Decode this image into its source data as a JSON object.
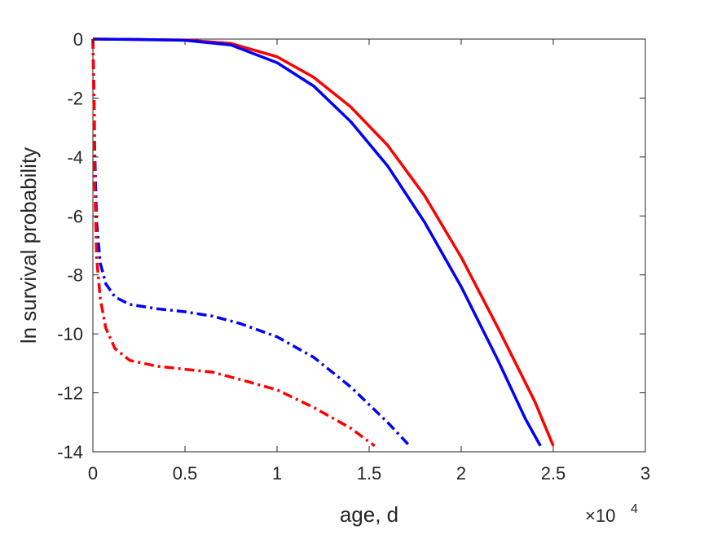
{
  "chart_data": {
    "type": "line",
    "title": "",
    "xlabel": "age, d",
    "ylabel": "ln survival probability",
    "x_multiplier_base": "×10",
    "x_multiplier_exponent": "4",
    "xlim": [
      0,
      30000
    ],
    "ylim": [
      -14,
      0
    ],
    "grid": false,
    "legend": "none",
    "xticks": [
      0,
      5000,
      10000,
      15000,
      20000,
      25000,
      30000
    ],
    "xtick_labels": [
      "0",
      "0.5",
      "1",
      "1.5",
      "2",
      "2.5",
      "3"
    ],
    "yticks": [
      0,
      -2,
      -4,
      -6,
      -8,
      -10,
      -12,
      -14
    ],
    "ytick_labels": [
      "0",
      "-2",
      "-4",
      "-6",
      "-8",
      "-10",
      "-12",
      "-14"
    ],
    "series": [
      {
        "color": "#ff0000",
        "style": "solid",
        "points": [
          [
            0,
            0
          ],
          [
            2000,
            -0.01
          ],
          [
            5000,
            -0.03
          ],
          [
            7500,
            -0.15
          ],
          [
            10000,
            -0.6
          ],
          [
            12000,
            -1.3
          ],
          [
            14000,
            -2.3
          ],
          [
            16000,
            -3.6
          ],
          [
            18000,
            -5.3
          ],
          [
            20000,
            -7.4
          ],
          [
            22000,
            -9.8
          ],
          [
            24000,
            -12.3
          ],
          [
            25000,
            -13.8
          ]
        ]
      },
      {
        "color": "#0000ff",
        "style": "solid",
        "points": [
          [
            0,
            0
          ],
          [
            2000,
            -0.01
          ],
          [
            5000,
            -0.04
          ],
          [
            7500,
            -0.2
          ],
          [
            10000,
            -0.8
          ],
          [
            12000,
            -1.6
          ],
          [
            14000,
            -2.8
          ],
          [
            16000,
            -4.3
          ],
          [
            18000,
            -6.2
          ],
          [
            20000,
            -8.4
          ],
          [
            22000,
            -10.9
          ],
          [
            23500,
            -12.9
          ],
          [
            24300,
            -13.8
          ]
        ]
      },
      {
        "color": "#0000ff",
        "style": "dashdot",
        "points": [
          [
            0,
            0
          ],
          [
            50,
            -1.5
          ],
          [
            100,
            -3.8
          ],
          [
            200,
            -6.2
          ],
          [
            400,
            -7.6
          ],
          [
            700,
            -8.3
          ],
          [
            1200,
            -8.75
          ],
          [
            2000,
            -9.0
          ],
          [
            3500,
            -9.15
          ],
          [
            5000,
            -9.25
          ],
          [
            6500,
            -9.4
          ],
          [
            8000,
            -9.65
          ],
          [
            10000,
            -10.1
          ],
          [
            12000,
            -10.8
          ],
          [
            14000,
            -11.8
          ],
          [
            16000,
            -13.0
          ],
          [
            17200,
            -13.8
          ]
        ]
      },
      {
        "color": "#ff0000",
        "style": "dashdot",
        "points": [
          [
            0,
            0
          ],
          [
            50,
            -2.0
          ],
          [
            100,
            -4.8
          ],
          [
            200,
            -7.4
          ],
          [
            400,
            -8.8
          ],
          [
            700,
            -9.8
          ],
          [
            1200,
            -10.5
          ],
          [
            2000,
            -10.9
          ],
          [
            3500,
            -11.1
          ],
          [
            5000,
            -11.2
          ],
          [
            6500,
            -11.3
          ],
          [
            8000,
            -11.55
          ],
          [
            10000,
            -11.9
          ],
          [
            12000,
            -12.5
          ],
          [
            14000,
            -13.2
          ],
          [
            15300,
            -13.8
          ]
        ]
      }
    ]
  }
}
